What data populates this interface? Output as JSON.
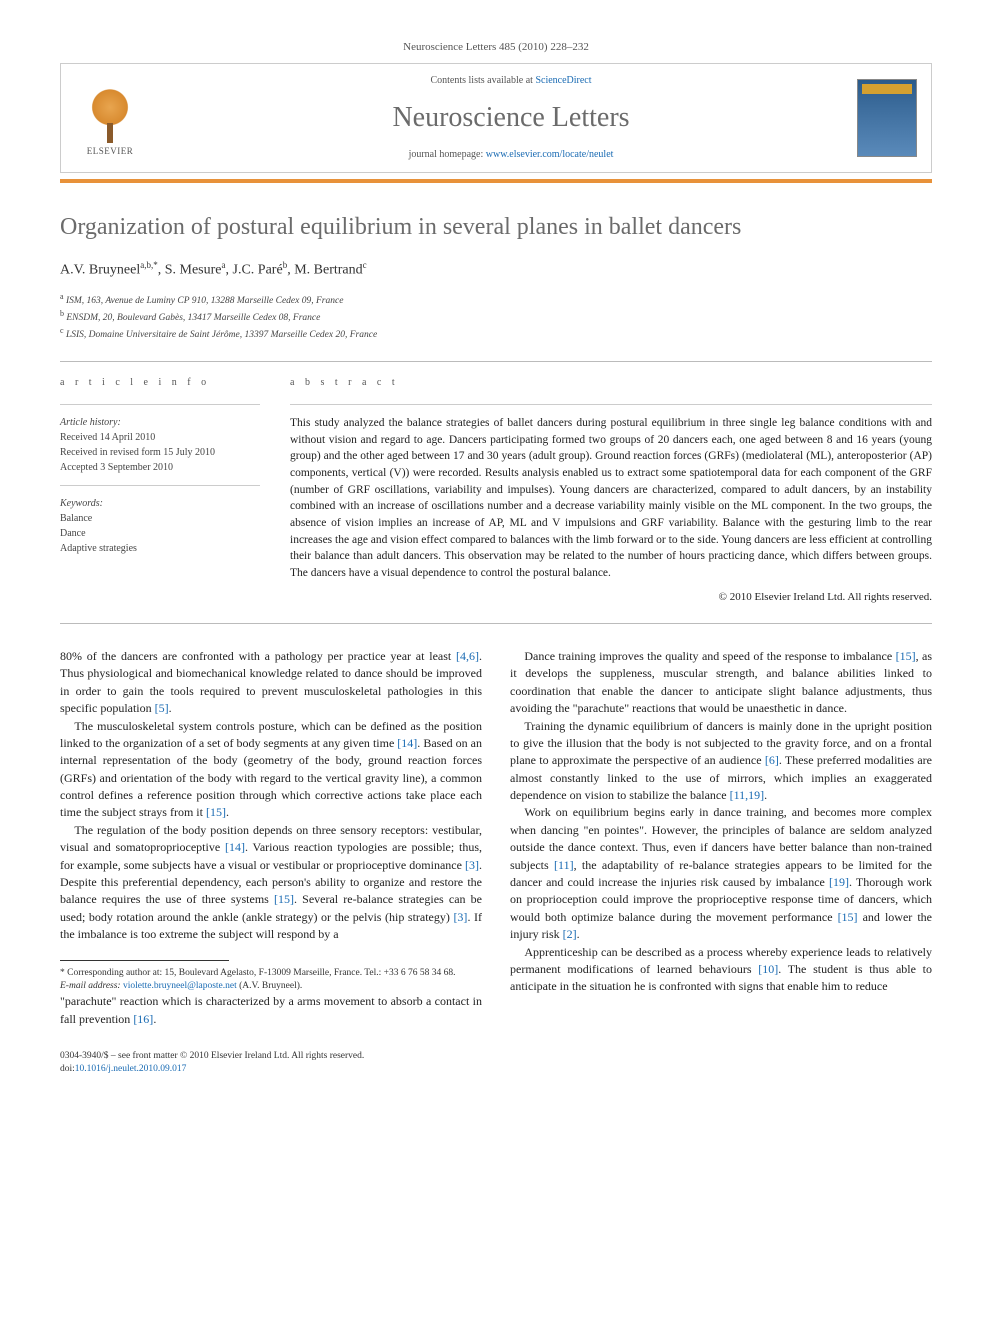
{
  "journal_header": "Neuroscience Letters 485 (2010) 228–232",
  "header_box": {
    "contents_prefix": "Contents lists available at ",
    "contents_link": "ScienceDirect",
    "journal_name": "Neuroscience Letters",
    "homepage_prefix": "journal homepage: ",
    "homepage_url": "www.elsevier.com/locate/neulet",
    "elsevier_label": "ELSEVIER"
  },
  "title": "Organization of postural equilibrium in several planes in ballet dancers",
  "authors_html": "A.V. Bruyneel",
  "authors": [
    {
      "name": "A.V. Bruyneel",
      "marks": "a,b,*"
    },
    {
      "name": "S. Mesure",
      "marks": "a"
    },
    {
      "name": "J.C. Paré",
      "marks": "b"
    },
    {
      "name": "M. Bertrand",
      "marks": "c"
    }
  ],
  "affiliations": [
    {
      "mark": "a",
      "text": "ISM, 163, Avenue de Luminy CP 910, 13288 Marseille Cedex 09, France"
    },
    {
      "mark": "b",
      "text": "ENSDM, 20, Boulevard Gabès, 13417 Marseille Cedex 08, France"
    },
    {
      "mark": "c",
      "text": "LSIS, Domaine Universitaire de Saint Jérôme, 13397 Marseille Cedex 20, France"
    }
  ],
  "info": {
    "heading": "a r t i c l e   i n f o",
    "history_label": "Article history:",
    "received": "Received 14 April 2010",
    "revised": "Received in revised form 15 July 2010",
    "accepted": "Accepted 3 September 2010",
    "keywords_label": "Keywords:",
    "keywords": [
      "Balance",
      "Dance",
      "Adaptive strategies"
    ]
  },
  "abstract": {
    "heading": "a b s t r a c t",
    "text": "This study analyzed the balance strategies of ballet dancers during postural equilibrium in three single leg balance conditions with and without vision and regard to age. Dancers participating formed two groups of 20 dancers each, one aged between 8 and 16 years (young group) and the other aged between 17 and 30 years (adult group). Ground reaction forces (GRFs) (mediolateral (ML), anteroposterior (AP) components, vertical (V)) were recorded. Results analysis enabled us to extract some spatiotemporal data for each component of the GRF (number of GRF oscillations, variability and impulses). Young dancers are characterized, compared to adult dancers, by an instability combined with an increase of oscillations number and a decrease variability mainly visible on the ML component. In the two groups, the absence of vision implies an increase of AP, ML and V impulsions and GRF variability. Balance with the gesturing limb to the rear increases the age and vision effect compared to balances with the limb forward or to the side. Young dancers are less efficient at controlling their balance than adult dancers. This observation may be related to the number of hours practicing dance, which differs between groups. The dancers have a visual dependence to control the postural balance.",
    "copyright": "© 2010 Elsevier Ireland Ltd. All rights reserved."
  },
  "body": {
    "p1": "80% of the dancers are confronted with a pathology per practice year at least [4,6]. Thus physiological and biomechanical knowledge related to dance should be improved in order to gain the tools required to prevent musculoskeletal pathologies in this specific population [5].",
    "p2": "The musculoskeletal system controls posture, which can be defined as the position linked to the organization of a set of body segments at any given time [14]. Based on an internal representation of the body (geometry of the body, ground reaction forces (GRFs) and orientation of the body with regard to the vertical gravity line), a common control defines a reference position through which corrective actions take place each time the subject strays from it [15].",
    "p3": "The regulation of the body position depends on three sensory receptors: vestibular, visual and somatoproprioceptive [14]. Various reaction typologies are possible; thus, for example, some subjects have a visual or vestibular or proprioceptive dominance [3]. Despite this preferential dependency, each person's ability to organize and restore the balance requires the use of three systems [15]. Several re-balance strategies can be used; body rotation around the ankle (ankle strategy) or the pelvis (hip strategy) [3]. If the imbalance is too extreme the subject will respond by a",
    "p4": "\"parachute\" reaction which is characterized by a arms movement to absorb a contact in fall prevention [16].",
    "p5": "Dance training improves the quality and speed of the response to imbalance [15], as it develops the suppleness, muscular strength, and balance abilities linked to coordination that enable the dancer to anticipate slight balance adjustments, thus avoiding the \"parachute\" reactions that would be unaesthetic in dance.",
    "p6": "Training the dynamic equilibrium of dancers is mainly done in the upright position to give the illusion that the body is not subjected to the gravity force, and on a frontal plane to approximate the perspective of an audience [6]. These preferred modalities are almost constantly linked to the use of mirrors, which implies an exaggerated dependence on vision to stabilize the balance [11,19].",
    "p7": "Work on equilibrium begins early in dance training, and becomes more complex when dancing \"en pointes\". However, the principles of balance are seldom analyzed outside the dance context. Thus, even if dancers have better balance than non-trained subjects [11], the adaptability of re-balance strategies appears to be limited for the dancer and could increase the injuries risk caused by imbalance [19]. Thorough work on proprioception could improve the proprioceptive response time of dancers, which would both optimize balance during the movement performance [15] and lower the injury risk [2].",
    "p8": "Apprenticeship can be described as a process whereby experience leads to relatively permanent modifications of learned behaviours [10]. The student is thus able to anticipate in the situation he is confronted with signs that enable him to reduce"
  },
  "footnote": {
    "corr": "* Corresponding author at: 15, Boulevard Agelasto, F-13009 Marseille, France. Tel.: +33 6 76 58 34 68.",
    "email_label": "E-mail address: ",
    "email": "violette.bruyneel@laposte.net",
    "email_author": " (A.V. Bruyneel)."
  },
  "bottom": {
    "line1": "0304-3940/$ – see front matter © 2010 Elsevier Ireland Ltd. All rights reserved.",
    "doi_prefix": "doi:",
    "doi": "10.1016/j.neulet.2010.09.017"
  },
  "colors": {
    "link": "#1a6bb3",
    "accent_bar": "#e8923a",
    "heading_grey": "#6b6b6b",
    "border": "#cccccc",
    "text": "#222222"
  }
}
